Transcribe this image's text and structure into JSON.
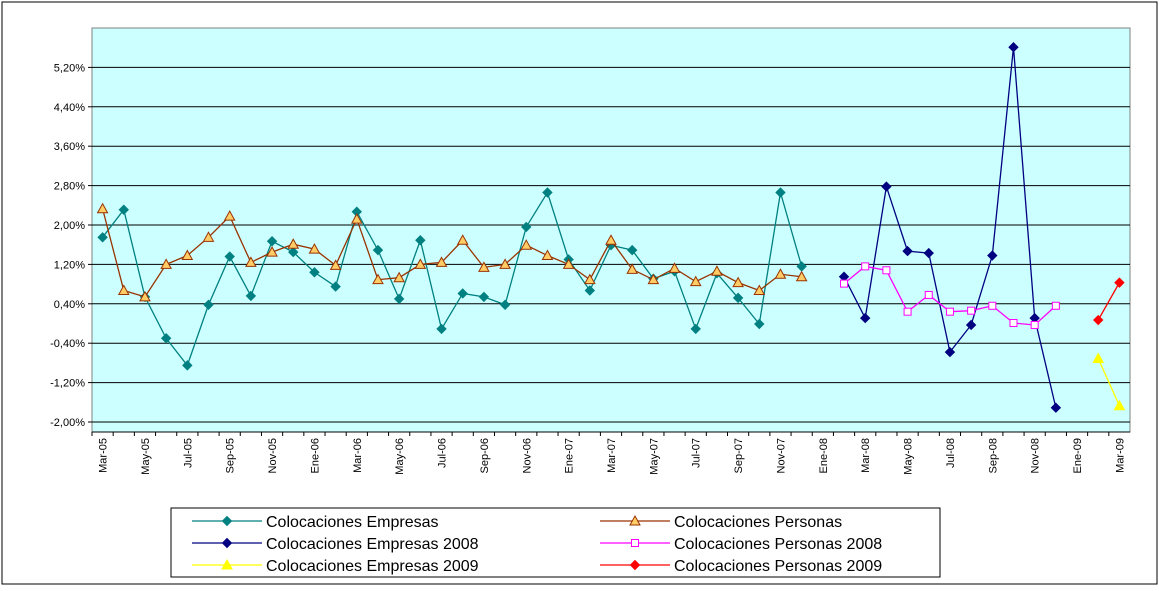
{
  "chart_data": {
    "type": "line",
    "categories": [
      "Mar-05",
      null,
      "May-05",
      null,
      "Jul-05",
      null,
      "Sep-05",
      null,
      "Nov-05",
      null,
      "Ene-06",
      null,
      "Mar-06",
      null,
      "May-06",
      null,
      "Jul-06",
      null,
      "Sep-06",
      null,
      "Nov-06",
      null,
      "Ene-07",
      null,
      "Mar-07",
      null,
      "May-07",
      null,
      "Jul-07",
      null,
      "Sep-07",
      null,
      "Nov-07",
      null,
      "Ene-08",
      null,
      "Mar-08",
      null,
      "May-08",
      null,
      "Jul-08",
      null,
      "Sep-08",
      null,
      "Nov-08",
      null,
      "Ene-09",
      null,
      "Mar-09"
    ],
    "ylim": [
      -2.0,
      6.0
    ],
    "yticks": [
      {
        "value": -2.0,
        "label": "-2,00%"
      },
      {
        "value": -1.2,
        "label": "-1,20%"
      },
      {
        "value": -0.4,
        "label": "-0,40%"
      },
      {
        "value": 0.4,
        "label": "0,40%"
      },
      {
        "value": 1.2,
        "label": "1,20%"
      },
      {
        "value": 2.0,
        "label": "2,00%"
      },
      {
        "value": 2.8,
        "label": "2,80%"
      },
      {
        "value": 3.6,
        "label": "3,60%"
      },
      {
        "value": 4.4,
        "label": "4,40%"
      },
      {
        "value": 5.2,
        "label": "5,20%"
      }
    ],
    "grid": true,
    "series": [
      {
        "name": "Colocaciones Empresas",
        "color": "#008080",
        "marker": "diamond",
        "marker_fill": "#008080",
        "values": [
          1.75,
          2.31,
          0.54,
          -0.3,
          -0.85,
          0.38,
          1.36,
          0.56,
          1.67,
          1.45,
          1.04,
          0.75,
          2.27,
          1.49,
          0.5,
          1.69,
          -0.11,
          0.61,
          0.54,
          0.38,
          1.96,
          2.66,
          1.3,
          0.67,
          1.59,
          1.49,
          0.91,
          1.06,
          -0.11,
          1.02,
          0.52,
          -0.01,
          2.66,
          1.16,
          null,
          null,
          null,
          null,
          null,
          null,
          null,
          null,
          null,
          null,
          null,
          null,
          null,
          null,
          null
        ]
      },
      {
        "name": "Colocaciones Personas",
        "color": "#993300",
        "marker": "triangle",
        "marker_fill": "#ffcc66",
        "values": [
          2.33,
          0.67,
          0.54,
          1.2,
          1.38,
          1.75,
          2.18,
          1.24,
          1.45,
          1.61,
          1.51,
          1.18,
          2.12,
          0.89,
          0.93,
          1.2,
          1.24,
          1.69,
          1.14,
          1.2,
          1.59,
          1.38,
          1.2,
          0.89,
          1.69,
          1.1,
          0.89,
          1.12,
          0.85,
          1.06,
          0.83,
          0.67,
          1.0,
          0.95,
          null,
          null,
          null,
          null,
          null,
          null,
          null,
          null,
          null,
          null,
          null,
          null,
          null,
          null,
          null
        ]
      },
      {
        "name": "Colocaciones Empresas 2008",
        "color": "#000080",
        "marker": "diamond",
        "marker_fill": "#000080",
        "values": [
          null,
          null,
          null,
          null,
          null,
          null,
          null,
          null,
          null,
          null,
          null,
          null,
          null,
          null,
          null,
          null,
          null,
          null,
          null,
          null,
          null,
          null,
          null,
          null,
          null,
          null,
          null,
          null,
          null,
          null,
          null,
          null,
          null,
          null,
          null,
          0.95,
          0.11,
          2.78,
          1.47,
          1.43,
          -0.58,
          -0.03,
          1.38,
          5.61,
          0.11,
          -1.71,
          null,
          null,
          null
        ]
      },
      {
        "name": "Colocaciones Personas 2008",
        "color": "#ff00ff",
        "marker": "square",
        "marker_fill": "#ffffff",
        "values": [
          null,
          null,
          null,
          null,
          null,
          null,
          null,
          null,
          null,
          null,
          null,
          null,
          null,
          null,
          null,
          null,
          null,
          null,
          null,
          null,
          null,
          null,
          null,
          null,
          null,
          null,
          null,
          null,
          null,
          null,
          null,
          null,
          null,
          null,
          null,
          0.81,
          1.16,
          1.08,
          0.24,
          0.58,
          0.24,
          0.26,
          0.36,
          0.01,
          -0.03,
          0.36,
          null,
          null,
          null
        ]
      },
      {
        "name": "Colocaciones Empresas 2009",
        "color": "#ffff00",
        "marker": "triangle",
        "marker_fill": "#ffff00",
        "values": [
          null,
          null,
          null,
          null,
          null,
          null,
          null,
          null,
          null,
          null,
          null,
          null,
          null,
          null,
          null,
          null,
          null,
          null,
          null,
          null,
          null,
          null,
          null,
          null,
          null,
          null,
          null,
          null,
          null,
          null,
          null,
          null,
          null,
          null,
          null,
          null,
          null,
          null,
          null,
          null,
          null,
          null,
          null,
          null,
          null,
          null,
          null,
          -0.71,
          -1.67
        ]
      },
      {
        "name": "Colocaciones Personas 2009",
        "color": "#ff0000",
        "marker": "diamond",
        "marker_fill": "#ff0000",
        "values": [
          null,
          null,
          null,
          null,
          null,
          null,
          null,
          null,
          null,
          null,
          null,
          null,
          null,
          null,
          null,
          null,
          null,
          null,
          null,
          null,
          null,
          null,
          null,
          null,
          null,
          null,
          null,
          null,
          null,
          null,
          null,
          null,
          null,
          null,
          null,
          null,
          null,
          null,
          null,
          null,
          null,
          null,
          null,
          null,
          null,
          null,
          null,
          0.07,
          0.83
        ]
      }
    ]
  }
}
